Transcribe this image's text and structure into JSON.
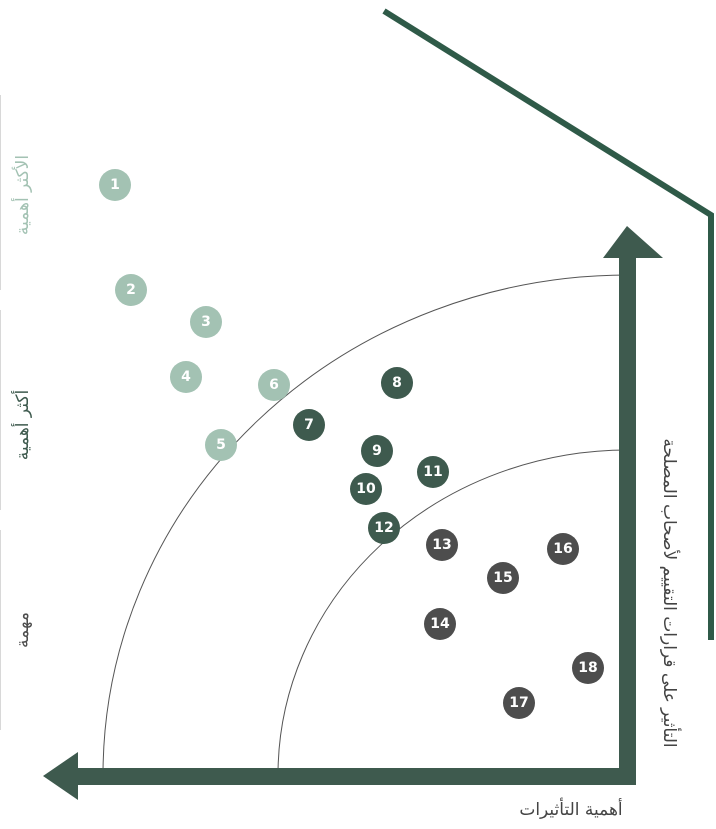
{
  "chart_data": {
    "type": "scatter",
    "xlabel": "أهمية التأثيرات",
    "ylabel": "التأثير على قرارات التقييم لأصحاب المصلحة",
    "bands": [
      {
        "label": "الأكثر أهمية",
        "color": "#a3c2b3"
      },
      {
        "label": "أكثر أهمية",
        "color": "#3e5a4e"
      },
      {
        "label": "مهمة",
        "color": "#4d4d4d"
      }
    ],
    "colors": {
      "most_important": "#a3c2b3",
      "more_important": "#3e5a4e",
      "important": "#4d4d4d",
      "axis": "#3e5a4e",
      "bracket": "#2f5a48"
    },
    "points": [
      {
        "label": "1",
        "band": "most_important"
      },
      {
        "label": "2",
        "band": "most_important"
      },
      {
        "label": "3",
        "band": "most_important"
      },
      {
        "label": "4",
        "band": "most_important"
      },
      {
        "label": "5",
        "band": "most_important"
      },
      {
        "label": "6",
        "band": "most_important"
      },
      {
        "label": "7",
        "band": "more_important"
      },
      {
        "label": "8",
        "band": "more_important"
      },
      {
        "label": "9",
        "band": "more_important"
      },
      {
        "label": "10",
        "band": "more_important"
      },
      {
        "label": "11",
        "band": "more_important"
      },
      {
        "label": "12",
        "band": "more_important"
      },
      {
        "label": "13",
        "band": "important"
      },
      {
        "label": "14",
        "band": "important"
      },
      {
        "label": "15",
        "band": "important"
      },
      {
        "label": "16",
        "band": "important"
      },
      {
        "label": "17",
        "band": "important"
      },
      {
        "label": "18",
        "band": "important"
      }
    ]
  }
}
